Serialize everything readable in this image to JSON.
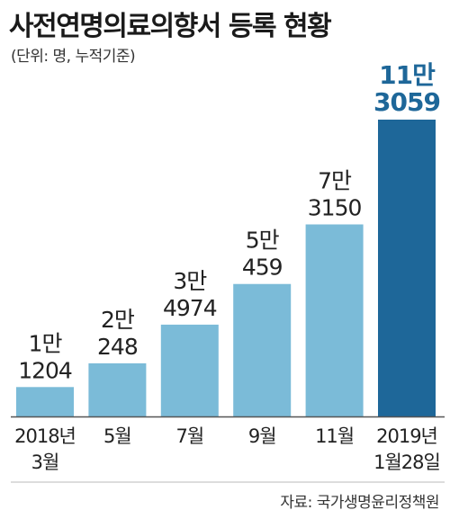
{
  "title": "사전연명의료의향서 등록 현황",
  "subtitle": "(단위: 명, 누적기준)",
  "source": "자료: 국가생명윤리정책원",
  "colors": {
    "bar": "#7bbbd8",
    "highlight": "#1e6799",
    "text": "#222222",
    "baseline": "#555555"
  },
  "chart_data": {
    "type": "bar",
    "title": "사전연명의료의향서 등록 현황",
    "subtitle": "(단위: 명, 누적기준)",
    "categories": [
      [
        "2018년",
        "3월"
      ],
      [
        "5월"
      ],
      [
        "7월"
      ],
      [
        "9월"
      ],
      [
        "11월"
      ],
      [
        "2019년",
        "1월28일"
      ]
    ],
    "values": [
      11204,
      20248,
      34974,
      50459,
      73150,
      113059
    ],
    "data_labels": [
      [
        "1만",
        "1204"
      ],
      [
        "2만",
        "248"
      ],
      [
        "3만",
        "4974"
      ],
      [
        "5만",
        "459"
      ],
      [
        "7만",
        "3150"
      ],
      [
        "11만",
        "3059"
      ]
    ],
    "highlight_index": 5,
    "ylim": [
      0,
      113059
    ]
  }
}
